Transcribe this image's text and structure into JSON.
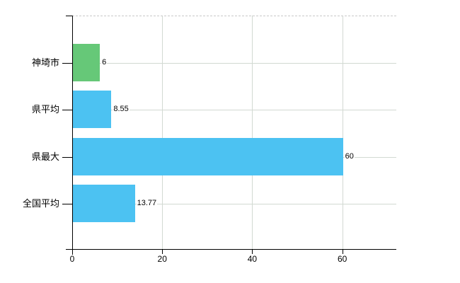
{
  "chart_data": {
    "type": "bar",
    "orientation": "horizontal",
    "title": "",
    "xlabel": "",
    "ylabel": "",
    "categories": [
      "神埼市",
      "県平均",
      "県最大",
      "全国平均"
    ],
    "values": [
      6,
      8.55,
      60,
      13.77
    ],
    "value_labels": [
      "6",
      "8.55",
      "60",
      "13.77"
    ],
    "bar_colors": [
      "#66c878",
      "#4cc2f2",
      "#4cc2f2",
      "#4cc2f2"
    ],
    "x_ticks": [
      0,
      20,
      40,
      60
    ],
    "x_tick_labels": [
      "0",
      "20",
      "40",
      "60"
    ],
    "xlim": [
      0,
      72
    ],
    "grid": true,
    "legend": false,
    "colors": {
      "background": "#ffffff",
      "axis": "#000000",
      "text": "#000000",
      "gridline": "#d2d9d2",
      "top_border": "#c9c9c9",
      "bar_green": "#66c878",
      "bar_blue": "#4cc2f2"
    }
  }
}
